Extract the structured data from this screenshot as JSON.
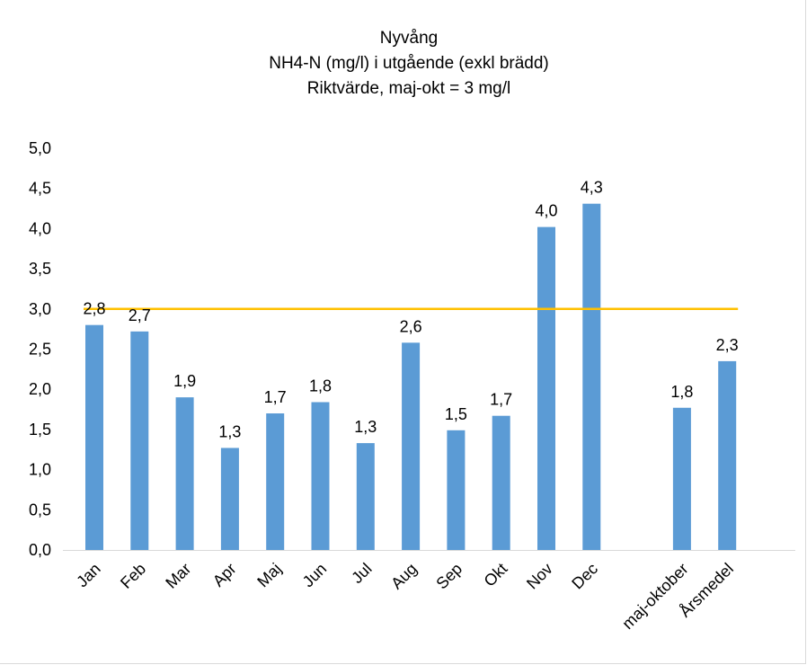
{
  "chart_data": {
    "type": "bar",
    "title": "Nyvång",
    "subtitle": "NH4-N (mg/l) i utgående (exkl brädd)",
    "subtitle2": "Riktvärde, maj-okt = 3 mg/l",
    "xlabel": "",
    "ylabel": "",
    "ylim": [
      0,
      5
    ],
    "yticks": [
      "0,0",
      "0,5",
      "1,0",
      "1,5",
      "2,0",
      "2,5",
      "3,0",
      "3,5",
      "4,0",
      "4,5",
      "5,0"
    ],
    "categories": [
      "Jan",
      "Feb",
      "Mar",
      "Apr",
      "Maj",
      "Jun",
      "Jul",
      "Aug",
      "Sep",
      "Okt",
      "Nov",
      "Dec",
      "",
      "maj-oktober",
      "Årsmedel"
    ],
    "values": [
      2.8,
      2.72,
      1.9,
      1.27,
      1.7,
      1.84,
      1.33,
      2.58,
      1.49,
      1.67,
      4.02,
      4.31,
      null,
      1.77,
      2.35
    ],
    "value_labels": [
      "2,8",
      "2,7",
      "1,9",
      "1,3",
      "1,7",
      "1,8",
      "1,3",
      "2,6",
      "1,5",
      "1,7",
      "4,0",
      "4,3",
      "",
      "1,8",
      "2,3"
    ],
    "reference_line": {
      "value": 3.0
    },
    "bar_color": "#5b9bd5",
    "reference_color": "#ffc000",
    "grid": false,
    "legend": "none"
  }
}
